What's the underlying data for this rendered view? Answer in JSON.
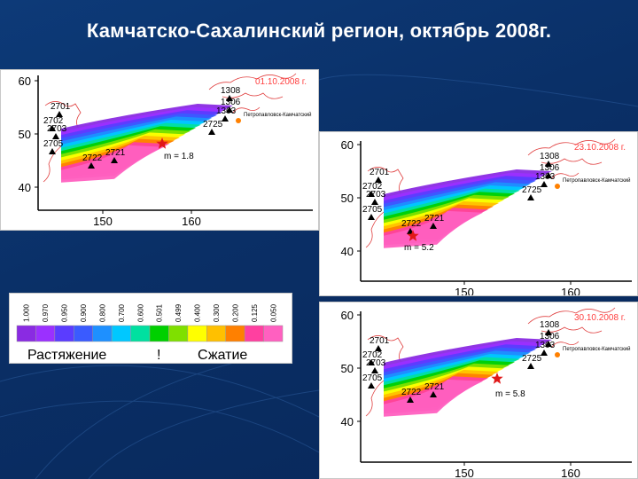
{
  "slide": {
    "title": "Камчатско-Сахалинский регион, октябрь 2008г."
  },
  "maps": [
    {
      "date": "01.10.2008 г.",
      "magnitude": "m = 1.8",
      "axis_y": [
        "60",
        "50",
        "40"
      ],
      "axis_x": [
        "150",
        "160"
      ],
      "stations": [
        "1308",
        "1306",
        "1303",
        "2701",
        "2702",
        "2703",
        "2705",
        "2721",
        "2722",
        "2725"
      ],
      "city": "Петропавловск-Камчатский"
    },
    {
      "date": "23.10.2008 г.",
      "magnitude": "m = 5.2",
      "axis_y": [
        "60",
        "50",
        "40"
      ],
      "axis_x": [
        "150",
        "160"
      ],
      "stations": [
        "1308",
        "1306",
        "1303",
        "2701",
        "2702",
        "2703",
        "2705",
        "2721",
        "2722",
        "2725"
      ],
      "city": "Петропавловск-Камчатский"
    },
    {
      "date": "30.10.2008 г.",
      "magnitude": "m = 5.8",
      "axis_y": [
        "60",
        "50",
        "40"
      ],
      "axis_x": [
        "150",
        "160"
      ],
      "stations": [
        "1308",
        "1306",
        "1303",
        "2701",
        "2702",
        "2703",
        "2705",
        "2721",
        "2722",
        "2725"
      ],
      "city": "Петропавловск-Камчатский"
    }
  ],
  "legend": {
    "ticks": [
      "1.000",
      "0.970",
      "0.950",
      "0.900",
      "0.800",
      "0.700",
      "0.600",
      "0.501",
      "0.499",
      "0.400",
      "0.300",
      "0.200",
      "0.125",
      "0.050"
    ],
    "stretch_label": "Растяжение",
    "separator": "!",
    "compress_label": "Сжатие",
    "colors": [
      "#8a2be2",
      "#9b30ff",
      "#5b3cff",
      "#3a5bff",
      "#1e90ff",
      "#00c8ff",
      "#00e0a0",
      "#00d000",
      "#7fe000",
      "#ffff00",
      "#ffc000",
      "#ff8000",
      "#ff40a0",
      "#ff60c0"
    ]
  }
}
